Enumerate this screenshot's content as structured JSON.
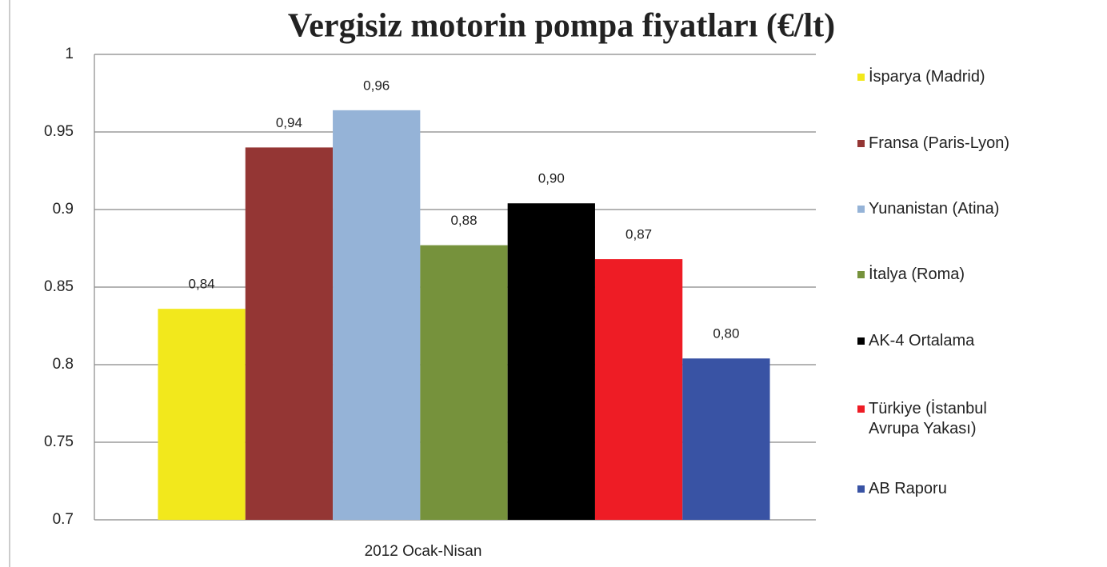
{
  "chart_data": {
    "type": "bar",
    "title": "Vergisiz motorin pompa fiyatları (€/lt)",
    "categories": [
      "2012 Ocak-Nisan"
    ],
    "series": [
      {
        "name": "İsparya (Madrid)",
        "color": "#f2e81c",
        "values": [
          0.836
        ],
        "value_labels": [
          "0,84"
        ]
      },
      {
        "name": "Fransa (Paris-Lyon)",
        "color": "#943634",
        "values": [
          0.94
        ],
        "value_labels": [
          "0,94"
        ]
      },
      {
        "name": "Yunanistan (Atina)",
        "color": "#95b3d7",
        "values": [
          0.964
        ],
        "value_labels": [
          "0,96"
        ]
      },
      {
        "name": "İtalya (Roma)",
        "color": "#76923c",
        "values": [
          0.877
        ],
        "value_labels": [
          "0,88"
        ]
      },
      {
        "name": "AK-4 Ortalama",
        "color": "#000000",
        "values": [
          0.904
        ],
        "value_labels": [
          "0,90"
        ]
      },
      {
        "name": "Türkiye (İstanbul Avrupa Yakası)",
        "color": "#ee1c25",
        "values": [
          0.868
        ],
        "value_labels": [
          "0,87"
        ]
      },
      {
        "name": "AB Raporu",
        "color": "#3953a4",
        "values": [
          0.804
        ],
        "value_labels": [
          "0,80"
        ]
      }
    ],
    "ylim": [
      0.7,
      1
    ],
    "yticks": [
      0.7,
      0.75,
      0.8,
      0.85,
      0.9,
      0.95,
      1
    ],
    "grid": true,
    "legend": "right"
  }
}
